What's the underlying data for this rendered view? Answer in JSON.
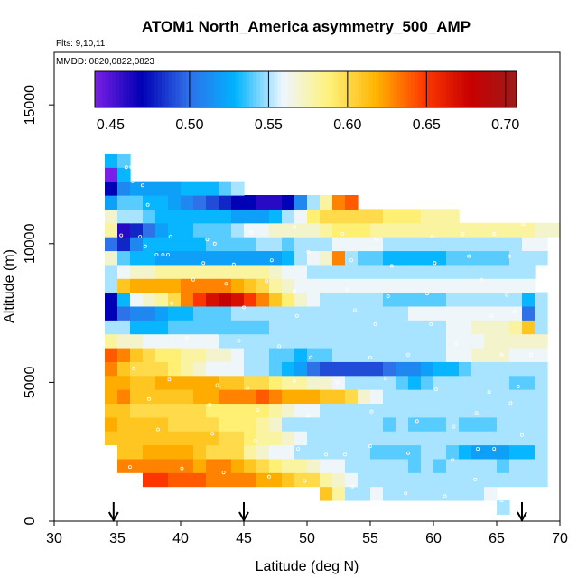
{
  "chart_data": {
    "type": "heatmap",
    "title": "ATOM1 North_America asymmetry_500_AMP",
    "annotations": [
      "Flts: 9,10,11",
      "MMDD: 0820,0822,0823"
    ],
    "xlabel": "Latitude (deg N)",
    "ylabel": "Altitude (m)",
    "xlim": [
      30,
      70
    ],
    "ylim": [
      0,
      18000
    ],
    "x_ticks": [
      30,
      35,
      40,
      45,
      50,
      55,
      60,
      65,
      70
    ],
    "y_ticks": [
      0,
      5000,
      10000,
      15000
    ],
    "grid": false,
    "colorbar": {
      "range": [
        0.44,
        0.707
      ],
      "ticks": [
        0.45,
        0.5,
        0.55,
        0.6,
        0.65,
        0.7
      ],
      "tick_labels": [
        "0.45",
        "0.50",
        "0.55",
        "0.60",
        "0.65",
        "0.70"
      ],
      "colors": [
        "#7a1fe6",
        "#0000b4",
        "#2f6fe8",
        "#00b4ff",
        "#eef6ff",
        "#fff27a",
        "#ffb400",
        "#ff3b00",
        "#c80000",
        "#9b1b1b"
      ]
    },
    "arrow_latitudes": [
      34.7,
      45,
      67
    ],
    "cell_size": {
      "lat": 1,
      "alt_m": 500
    },
    "rows": [
      {
        "alt": 500,
        "lat_start": 65,
        "values": [
          0.55
        ]
      },
      {
        "alt": 1000,
        "lat_start": 51,
        "values": [
          0.61,
          0.58,
          0.55,
          0.55,
          0.56,
          0.55,
          0.55,
          0.55,
          0.55,
          0.55,
          0.55,
          0.55,
          0.55,
          0.56
        ]
      },
      {
        "alt": 1500,
        "lat_start": 37,
        "values": [
          0.65,
          0.65,
          0.64,
          0.64,
          0.64,
          0.63,
          0.63,
          0.63,
          0.63,
          0.62,
          0.62,
          0.61,
          0.6,
          0.6,
          0.58,
          0.57,
          0.56,
          0.55,
          0.55,
          0.55,
          0.55,
          0.55,
          0.55,
          0.55,
          0.55,
          0.55,
          0.55,
          0.55,
          0.55,
          0.55,
          0.55,
          0.55
        ]
      },
      {
        "alt": 2000,
        "lat_start": 35,
        "values": [
          0.63,
          0.63,
          0.63,
          0.63,
          0.63,
          0.63,
          0.62,
          0.63,
          0.63,
          0.62,
          0.61,
          0.6,
          0.59,
          0.58,
          0.58,
          0.57,
          0.56,
          0.56,
          0.55,
          0.55,
          0.55,
          0.55,
          0.55,
          0.54,
          0.55,
          0.54,
          0.55,
          0.55,
          0.55,
          0.55,
          0.54,
          0.55,
          0.55,
          0.55
        ]
      },
      {
        "alt": 2500,
        "lat_start": 35,
        "values": [
          0.61,
          0.61,
          0.62,
          0.62,
          0.62,
          0.62,
          0.61,
          0.6,
          0.6,
          0.6,
          0.58,
          0.57,
          0.56,
          0.56,
          0.55,
          0.55,
          0.55,
          0.55,
          0.55,
          0.55,
          0.54,
          0.54,
          0.54,
          0.54,
          0.55,
          0.55,
          0.54,
          0.53,
          0.52,
          0.52,
          0.52,
          0.53,
          0.53,
          0.55
        ]
      },
      {
        "alt": 3000,
        "lat_start": 34,
        "values": [
          0.61,
          0.61,
          0.61,
          0.61,
          0.61,
          0.61,
          0.61,
          0.61,
          0.61,
          0.6,
          0.6,
          0.59,
          0.58,
          0.58,
          0.57,
          0.56,
          0.55,
          0.55,
          0.55,
          0.55,
          0.55,
          0.55,
          0.55,
          0.55,
          0.55,
          0.55,
          0.55,
          0.55,
          0.55,
          0.55,
          0.55,
          0.55,
          0.55,
          0.55,
          0.55
        ]
      },
      {
        "alt": 3500,
        "lat_start": 34,
        "values": [
          0.62,
          0.61,
          0.61,
          0.61,
          0.61,
          0.6,
          0.6,
          0.6,
          0.6,
          0.59,
          0.59,
          0.59,
          0.58,
          0.57,
          0.55,
          0.55,
          0.55,
          0.55,
          0.55,
          0.55,
          0.55,
          0.55,
          0.54,
          0.55,
          0.54,
          0.54,
          0.54,
          0.55,
          0.54,
          0.54,
          0.54,
          0.55,
          0.55,
          0.55,
          0.55
        ]
      },
      {
        "alt": 4000,
        "lat_start": 34,
        "values": [
          0.61,
          0.61,
          0.6,
          0.6,
          0.6,
          0.6,
          0.6,
          0.6,
          0.59,
          0.59,
          0.59,
          0.59,
          0.59,
          0.58,
          0.57,
          0.56,
          0.56,
          0.55,
          0.55,
          0.55,
          0.55,
          0.55,
          0.55,
          0.55,
          0.55,
          0.55,
          0.55,
          0.55,
          0.55,
          0.55,
          0.55,
          0.55,
          0.55,
          0.55,
          0.55
        ]
      },
      {
        "alt": 4500,
        "lat_start": 34,
        "values": [
          0.62,
          0.63,
          0.61,
          0.61,
          0.61,
          0.61,
          0.61,
          0.62,
          0.62,
          0.63,
          0.63,
          0.63,
          0.64,
          0.63,
          0.62,
          0.62,
          0.62,
          0.61,
          0.61,
          0.6,
          0.57,
          0.56,
          0.55,
          0.55,
          0.55,
          0.55,
          0.55,
          0.55,
          0.55,
          0.55,
          0.55,
          0.55,
          0.55,
          0.55,
          0.55
        ]
      },
      {
        "alt": 5000,
        "lat_start": 34,
        "values": [
          0.62,
          0.62,
          0.61,
          0.61,
          0.62,
          0.62,
          0.62,
          0.62,
          0.62,
          0.61,
          0.61,
          0.6,
          0.6,
          0.59,
          0.58,
          0.58,
          0.57,
          0.57,
          0.56,
          0.55,
          0.55,
          0.55,
          0.55,
          0.54,
          0.53,
          0.54,
          0.55,
          0.55,
          0.55,
          0.55,
          0.55,
          0.55,
          0.54,
          0.54,
          0.55
        ]
      },
      {
        "alt": 5500,
        "lat_start": 34,
        "values": [
          0.63,
          0.61,
          0.6,
          0.6,
          0.6,
          0.59,
          0.58,
          0.57,
          0.56,
          0.56,
          0.56,
          0.55,
          0.55,
          0.54,
          0.53,
          0.52,
          0.5,
          0.49,
          0.49,
          0.49,
          0.49,
          0.49,
          0.5,
          0.51,
          0.51,
          0.52,
          0.53,
          0.53,
          0.54,
          0.55,
          0.55,
          0.55,
          0.55,
          0.55,
          0.55
        ]
      },
      {
        "alt": 6000,
        "lat_start": 34,
        "values": [
          0.64,
          0.63,
          0.61,
          0.6,
          0.59,
          0.59,
          0.58,
          0.58,
          0.57,
          0.57,
          0.56,
          0.55,
          0.55,
          0.54,
          0.54,
          0.53,
          0.54,
          0.54,
          0.55,
          0.55,
          0.55,
          0.55,
          0.55,
          0.55,
          0.55,
          0.55,
          0.55,
          0.56,
          0.56,
          0.57,
          0.57,
          0.57,
          0.56,
          0.56,
          0.56
        ]
      },
      {
        "alt": 6500,
        "lat_start": 34,
        "values": [
          0.58,
          0.57,
          0.57,
          0.56,
          0.56,
          0.56,
          0.56,
          0.56,
          0.56,
          0.55,
          0.55,
          0.55,
          0.55,
          0.55,
          0.55,
          0.55,
          0.55,
          0.55,
          0.55,
          0.55,
          0.55,
          0.55,
          0.55,
          0.55,
          0.55,
          0.55,
          0.55,
          0.56,
          0.56,
          0.56,
          0.57,
          0.57,
          0.57,
          0.57,
          0.57
        ]
      },
      {
        "alt": 7000,
        "lat_start": 34,
        "values": [
          0.55,
          0.55,
          0.53,
          0.53,
          0.53,
          0.54,
          0.54,
          0.54,
          0.54,
          0.54,
          0.54,
          0.54,
          0.54,
          0.55,
          0.55,
          0.55,
          0.55,
          0.55,
          0.55,
          0.55,
          0.55,
          0.55,
          0.55,
          0.55,
          0.55,
          0.55,
          0.55,
          0.56,
          0.56,
          0.57,
          0.57,
          0.57,
          0.58,
          0.61,
          0.55
        ]
      },
      {
        "alt": 7500,
        "lat_start": 34,
        "values": [
          0.47,
          0.5,
          0.51,
          0.51,
          0.52,
          0.53,
          0.53,
          0.54,
          0.54,
          0.54,
          0.55,
          0.55,
          0.55,
          0.55,
          0.55,
          0.55,
          0.55,
          0.55,
          0.55,
          0.55,
          0.55,
          0.55,
          0.55,
          0.55,
          0.56,
          0.56,
          0.56,
          0.56,
          0.56,
          0.56,
          0.56,
          0.56,
          0.56,
          0.5,
          0.55
        ]
      },
      {
        "alt": 8000,
        "lat_start": 34,
        "values": [
          0.47,
          0.53,
          0.56,
          0.57,
          0.58,
          0.6,
          0.63,
          0.65,
          0.67,
          0.68,
          0.67,
          0.65,
          0.63,
          0.61,
          0.59,
          0.57,
          0.56,
          0.55,
          0.55,
          0.55,
          0.55,
          0.55,
          0.54,
          0.54,
          0.54,
          0.54,
          0.54,
          0.55,
          0.55,
          0.55,
          0.55,
          0.55,
          0.55,
          0.53,
          0.55
        ]
      },
      {
        "alt": 8500,
        "lat_start": 34,
        "values": [
          0.55,
          0.61,
          0.62,
          0.62,
          0.62,
          0.62,
          0.63,
          0.63,
          0.63,
          0.63,
          0.62,
          0.61,
          0.6,
          0.58,
          0.57,
          0.56,
          0.56,
          0.56,
          0.56,
          0.56,
          0.56,
          0.56,
          0.56,
          0.56,
          0.56,
          0.56,
          0.56,
          0.56,
          0.56,
          0.56,
          0.56,
          0.56,
          0.56,
          0.56
        ]
      },
      {
        "alt": 9000,
        "lat_start": 34,
        "values": [
          0.55,
          0.56,
          0.57,
          0.57,
          0.58,
          0.58,
          0.58,
          0.58,
          0.58,
          0.58,
          0.58,
          0.58,
          0.58,
          0.57,
          0.56,
          0.56,
          0.55,
          0.55,
          0.55,
          0.55,
          0.55,
          0.55,
          0.55,
          0.55,
          0.55,
          0.55,
          0.55,
          0.55,
          0.55,
          0.55,
          0.55,
          0.55,
          0.55,
          0.55
        ]
      },
      {
        "alt": 9500,
        "lat_start": 34,
        "values": [
          0.57,
          0.54,
          0.53,
          0.53,
          0.52,
          0.52,
          0.52,
          0.52,
          0.52,
          0.52,
          0.52,
          0.52,
          0.52,
          0.52,
          0.53,
          0.55,
          0.56,
          0.57,
          0.63,
          0.55,
          0.54,
          0.54,
          0.53,
          0.53,
          0.53,
          0.53,
          0.53,
          0.54,
          0.54,
          0.54,
          0.54,
          0.54,
          0.55,
          0.55,
          0.55
        ]
      },
      {
        "alt": 10000,
        "lat_start": 34,
        "values": [
          0.5,
          0.48,
          0.51,
          0.53,
          0.53,
          0.53,
          0.53,
          0.53,
          0.54,
          0.54,
          0.54,
          0.54,
          0.55,
          0.55,
          0.54,
          0.55,
          0.55,
          0.55,
          0.56,
          0.56,
          0.56,
          0.56,
          0.55,
          0.55,
          0.55,
          0.55,
          0.55,
          0.55,
          0.55,
          0.55,
          0.55,
          0.55,
          0.55,
          0.56,
          0.56
        ]
      },
      {
        "alt": 10500,
        "lat_start": 34,
        "values": [
          0.58,
          0.46,
          0.48,
          0.5,
          0.52,
          0.53,
          0.53,
          0.54,
          0.54,
          0.54,
          0.55,
          0.56,
          0.56,
          0.57,
          0.57,
          0.57,
          0.57,
          0.58,
          0.59,
          0.59,
          0.59,
          0.58,
          0.58,
          0.58,
          0.58,
          0.58,
          0.58,
          0.58,
          0.58,
          0.58,
          0.58,
          0.58,
          0.58,
          0.58,
          0.57,
          0.57
        ]
      },
      {
        "alt": 11000,
        "lat_start": 34,
        "values": [
          0.57,
          0.55,
          0.55,
          0.54,
          0.53,
          0.53,
          0.53,
          0.53,
          0.53,
          0.53,
          0.52,
          0.52,
          0.52,
          0.53,
          0.55,
          0.56,
          0.59,
          0.6,
          0.6,
          0.6,
          0.6,
          0.6,
          0.59,
          0.59,
          0.59,
          0.58,
          0.58,
          0.58
        ]
      },
      {
        "alt": 11500,
        "lat_start": 34,
        "values": [
          0.52,
          0.54,
          0.54,
          0.53,
          0.53,
          0.52,
          0.51,
          0.5,
          0.49,
          0.48,
          0.47,
          0.47,
          0.46,
          0.46,
          0.47,
          0.51,
          0.55,
          0.58,
          0.63,
          0.64
        ]
      },
      {
        "alt": 12000,
        "lat_start": 34,
        "values": [
          0.47,
          0.51,
          0.52,
          0.52,
          0.52,
          0.52,
          0.53,
          0.53,
          0.53,
          0.54,
          0.55
        ]
      },
      {
        "alt": 12500,
        "lat_start": 34,
        "values": [
          0.44,
          0.53
        ]
      },
      {
        "alt": 13000,
        "lat_start": 34,
        "values": [
          0.53,
          0.54
        ]
      }
    ],
    "samples": [
      [
        35.7,
        12750
      ],
      [
        36.1,
        12750
      ],
      [
        36.5,
        12750
      ],
      [
        36.2,
        12250
      ],
      [
        37.0,
        12100
      ],
      [
        37.4,
        11400
      ],
      [
        35.3,
        10300
      ],
      [
        36.8,
        10250
      ],
      [
        39.2,
        10250
      ],
      [
        42.1,
        10150
      ],
      [
        42.7,
        10000
      ],
      [
        45.6,
        10400
      ],
      [
        49.0,
        10600
      ],
      [
        52.8,
        10350
      ],
      [
        55.5,
        10150
      ],
      [
        59.9,
        10250
      ],
      [
        62.3,
        10350
      ],
      [
        64.8,
        10350
      ],
      [
        67.1,
        10700
      ],
      [
        37.2,
        9900
      ],
      [
        38.1,
        9600
      ],
      [
        38.6,
        9600
      ],
      [
        39.0,
        9600
      ],
      [
        41.8,
        9300
      ],
      [
        44.2,
        9250
      ],
      [
        47.2,
        9400
      ],
      [
        50.1,
        9700
      ],
      [
        53.5,
        9400
      ],
      [
        56.7,
        9200
      ],
      [
        60.1,
        9300
      ],
      [
        62.8,
        9550
      ],
      [
        66.0,
        9550
      ],
      [
        41.0,
        8700
      ],
      [
        43.6,
        8550
      ],
      [
        46.8,
        8650
      ],
      [
        49.0,
        8300
      ],
      [
        53.2,
        8350
      ],
      [
        56.4,
        8100
      ],
      [
        59.5,
        8200
      ],
      [
        63.8,
        8700
      ],
      [
        65.8,
        8150
      ],
      [
        39.3,
        7850
      ],
      [
        45.0,
        7700
      ],
      [
        49.2,
        7400
      ],
      [
        53.8,
        7600
      ],
      [
        55.4,
        7100
      ],
      [
        59.8,
        7100
      ],
      [
        64.6,
        7400
      ],
      [
        66.4,
        7550
      ],
      [
        40.5,
        6600
      ],
      [
        44.6,
        6500
      ],
      [
        47.8,
        6300
      ],
      [
        50.3,
        5900
      ],
      [
        55.0,
        5900
      ],
      [
        58.0,
        6000
      ],
      [
        61.8,
        6400
      ],
      [
        65.4,
        6000
      ],
      [
        67.7,
        6000
      ],
      [
        36.3,
        5500
      ],
      [
        39.1,
        5100
      ],
      [
        42.9,
        4900
      ],
      [
        45.3,
        4800
      ],
      [
        49.0,
        5050
      ],
      [
        52.4,
        5000
      ],
      [
        56.2,
        5150
      ],
      [
        60.2,
        4750
      ],
      [
        64.4,
        4650
      ],
      [
        66.7,
        4850
      ],
      [
        37.5,
        4400
      ],
      [
        42.3,
        4200
      ],
      [
        46.1,
        4000
      ],
      [
        50.1,
        3800
      ],
      [
        55.1,
        3950
      ],
      [
        58.7,
        3600
      ],
      [
        61.6,
        3400
      ],
      [
        63.4,
        3900
      ],
      [
        66.1,
        4250
      ],
      [
        38.2,
        3300
      ],
      [
        42.5,
        3150
      ],
      [
        45.9,
        2900
      ],
      [
        49.3,
        2600
      ],
      [
        51.5,
        2400
      ],
      [
        53.0,
        2400
      ],
      [
        55.0,
        2700
      ],
      [
        58.0,
        2450
      ],
      [
        61.5,
        2200
      ],
      [
        63.5,
        2600
      ],
      [
        64.8,
        2600
      ],
      [
        67.0,
        3100
      ],
      [
        36.0,
        1950
      ],
      [
        40.1,
        1900
      ],
      [
        43.4,
        1750
      ],
      [
        47.0,
        1600
      ],
      [
        49.8,
        1450
      ],
      [
        53.6,
        1250
      ],
      [
        57.8,
        1000
      ],
      [
        60.9,
        900
      ],
      [
        63.3,
        1500
      ],
      [
        65.4,
        750
      ]
    ]
  }
}
